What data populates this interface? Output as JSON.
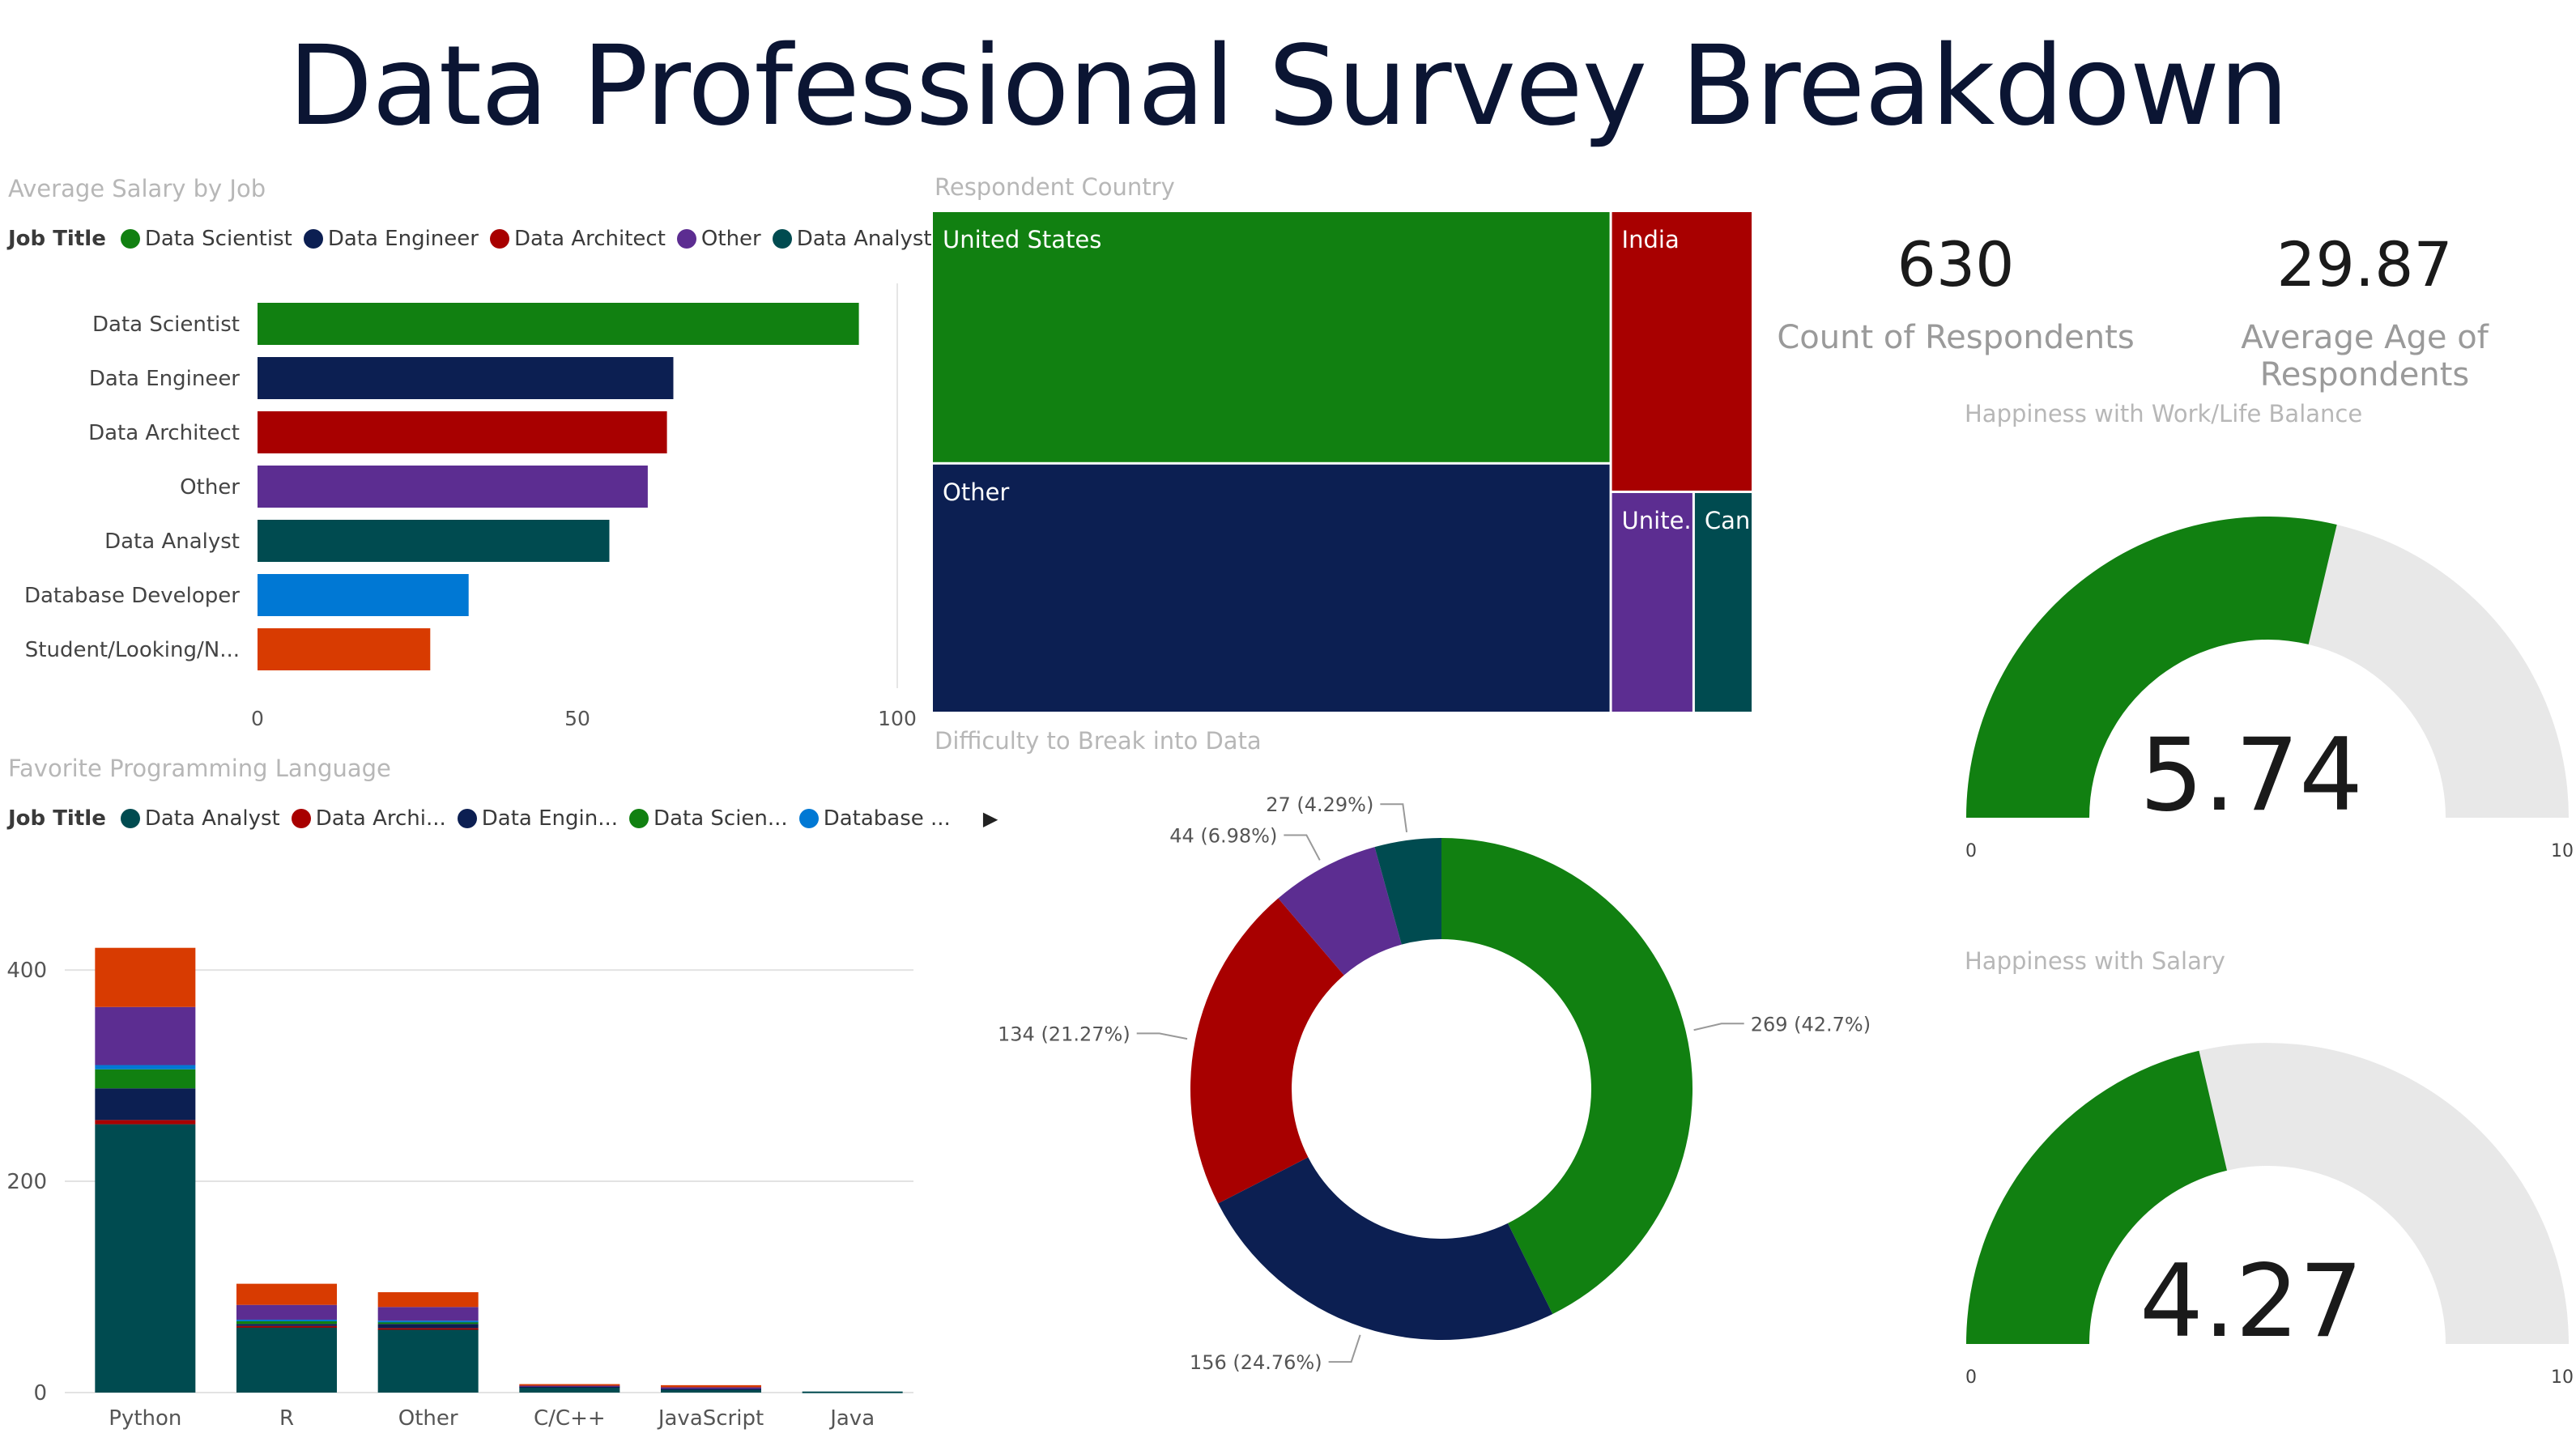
{
  "title": "Data Professional Survey Breakdown",
  "salary_panel": {
    "title": "Average Salary by Job",
    "legend": {
      "title": "Job Title",
      "items": [
        {
          "label": "Data Scientist",
          "color": "#118011"
        },
        {
          "label": "Data Engineer",
          "color": "#0c1f52"
        },
        {
          "label": "Data Architect",
          "color": "#a80000"
        },
        {
          "label": "Other",
          "color": "#5c2d91"
        },
        {
          "label": "Data Analyst",
          "color": "#004b50"
        }
      ]
    }
  },
  "language_panel": {
    "title": "Favorite Programming Language",
    "legend": {
      "title": "Job Title",
      "items": [
        {
          "label": "Data Analyst",
          "color": "#004b50"
        },
        {
          "label": "Data Archi...",
          "color": "#a80000"
        },
        {
          "label": "Data Engin...",
          "color": "#0c1f52"
        },
        {
          "label": "Data Scien...",
          "color": "#118011"
        },
        {
          "label": "Database ...",
          "color": "#0078d4"
        }
      ]
    }
  },
  "country_panel": {
    "title": "Respondent Country"
  },
  "difficulty_panel": {
    "title": "Difficulty to Break into Data"
  },
  "cards": [
    {
      "value": "630",
      "label": "Count of Respondents"
    },
    {
      "value": "29.87",
      "label": "Average Age of Respondents"
    }
  ],
  "gauges": [
    {
      "title": "Happiness with Work/Life Balance",
      "value": 5.74,
      "value_label": "5.74",
      "min": 0,
      "max": 10,
      "min_label": "0",
      "max_label": "10"
    },
    {
      "title": "Happiness with Salary",
      "value": 4.27,
      "value_label": "4.27",
      "min": 0,
      "max": 10,
      "min_label": "0",
      "max_label": "10"
    }
  ],
  "chart_data": [
    {
      "type": "bar",
      "orientation": "horizontal",
      "title": "Average Salary by Job",
      "categories": [
        "Data Scientist",
        "Data Engineer",
        "Data Architect",
        "Other",
        "Data Analyst",
        "Database Developer",
        "Student/Looking/N..."
      ],
      "values": [
        94,
        65,
        64,
        61,
        55,
        33,
        27
      ],
      "colors": [
        "#118011",
        "#0c1f52",
        "#a80000",
        "#5c2d91",
        "#004b50",
        "#0078d4",
        "#d83b01"
      ],
      "xlim": [
        0,
        100
      ],
      "xticks": [
        "0",
        "50",
        "100"
      ],
      "grid": false
    },
    {
      "type": "bar",
      "stacked": true,
      "title": "Favorite Programming Language",
      "categories": [
        "Python",
        "R",
        "Other",
        "C/C++",
        "JavaScript",
        "Java"
      ],
      "series": [
        {
          "name": "Data Analyst",
          "color": "#004b50",
          "values": [
            254,
            62,
            60,
            5,
            3,
            1
          ]
        },
        {
          "name": "Data Archi...",
          "color": "#a80000",
          "values": [
            4,
            1,
            1,
            0,
            0,
            0
          ]
        },
        {
          "name": "Data Engin...",
          "color": "#0c1f52",
          "values": [
            30,
            2,
            4,
            1,
            1,
            0
          ]
        },
        {
          "name": "Data Scien...",
          "color": "#118011",
          "values": [
            18,
            3,
            2,
            0,
            0,
            0
          ]
        },
        {
          "name": "Database ...",
          "color": "#0078d4",
          "values": [
            4,
            1,
            1,
            0,
            0,
            0
          ]
        },
        {
          "series_color_only": true,
          "color": "#5c2d91",
          "values": [
            55,
            14,
            13,
            1,
            1,
            0
          ]
        },
        {
          "series_color_only": true,
          "color": "#d83b01",
          "values": [
            56,
            20,
            14,
            1,
            2,
            0
          ]
        }
      ],
      "ylim": [
        0,
        420
      ],
      "yticks": [
        "0",
        "200",
        "400"
      ],
      "grid": true
    },
    {
      "type": "treemap",
      "title": "Respondent Country",
      "items": [
        {
          "label": "United States",
          "value": 262,
          "color": "#118011"
        },
        {
          "label": "Other",
          "value": 259,
          "color": "#0c1f52"
        },
        {
          "label": "India",
          "value": 61,
          "color": "#a80000"
        },
        {
          "label": "Unite...",
          "value": 28,
          "color": "#5c2d91"
        },
        {
          "label": "Can...",
          "value": 20,
          "color": "#004b50"
        }
      ]
    },
    {
      "type": "pie",
      "donut": true,
      "title": "Difficulty to Break into Data",
      "slices": [
        {
          "value": 269,
          "label": "269 (42.7%)",
          "color": "#118011"
        },
        {
          "value": 156,
          "label": "156 (24.76%)",
          "color": "#0c1f52"
        },
        {
          "value": 134,
          "label": "134 (21.27%)",
          "color": "#a80000"
        },
        {
          "value": 44,
          "label": "44 (6.98%)",
          "color": "#5c2d91"
        },
        {
          "value": 27,
          "label": "27 (4.29%)",
          "color": "#004b50"
        }
      ]
    }
  ]
}
